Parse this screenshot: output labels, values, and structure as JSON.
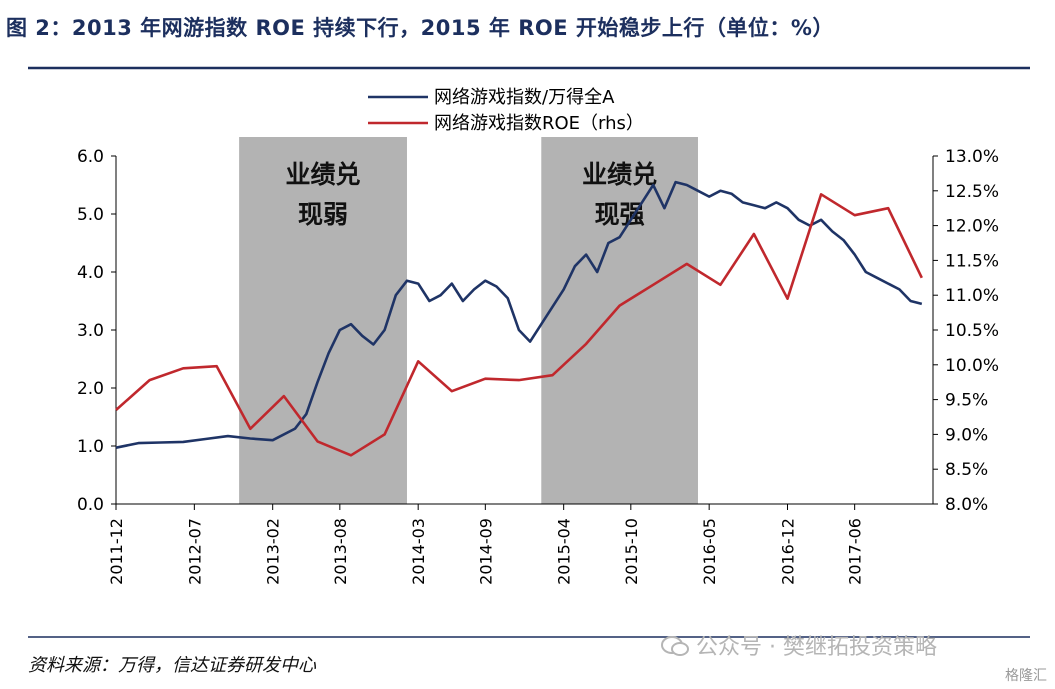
{
  "title": "图 2：2013 年网游指数 ROE 持续下行，2015 年 ROE 开始稳步上行（单位：%）",
  "source": "资料来源：万得，信达证券研发中心",
  "watermark": "公众号 · 樊继拓投资策略",
  "corner_watermark": "格隆汇",
  "colors": {
    "title": "#1c2f5e",
    "rule": "#1c2f5e",
    "series_ratio": "#1f3466",
    "series_roe": "#c0282d",
    "shade": "#b3b3b3"
  },
  "chart_data": {
    "type": "line",
    "legend_position": "top-center",
    "grid": false,
    "x_range": [
      "2011-12",
      "2018-01"
    ],
    "x_tick_labels": [
      "2011-12",
      "2012-07",
      "2013-02",
      "2013-08",
      "2014-03",
      "2014-09",
      "2015-04",
      "2015-10",
      "2016-05",
      "2016-12",
      "2017-06"
    ],
    "y_left": {
      "ylim": [
        0.0,
        6.0
      ],
      "ticks": [
        "0.0",
        "1.0",
        "2.0",
        "3.0",
        "4.0",
        "5.0",
        "6.0"
      ]
    },
    "y_right": {
      "ylim": [
        8.0,
        13.0
      ],
      "ticks": [
        "8.0%",
        "8.5%",
        "9.0%",
        "9.5%",
        "10.0%",
        "10.5%",
        "11.0%",
        "11.5%",
        "12.0%",
        "12.5%",
        "13.0%"
      ]
    },
    "shaded_periods": [
      {
        "label_line1": "业绩兑",
        "label_line2": "现弱",
        "start": "2012-11",
        "end": "2014-02"
      },
      {
        "label_line1": "业绩兑",
        "label_line2": "现强",
        "start": "2015-02",
        "end": "2016-04"
      }
    ],
    "series": [
      {
        "name": "网络游戏指数/万得全A",
        "axis": "left",
        "points": [
          [
            "2011-12",
            0.97
          ],
          [
            "2012-02",
            1.05
          ],
          [
            "2012-04",
            1.06
          ],
          [
            "2012-06",
            1.07
          ],
          [
            "2012-08",
            1.12
          ],
          [
            "2012-10",
            1.17
          ],
          [
            "2012-12",
            1.13
          ],
          [
            "2013-02",
            1.1
          ],
          [
            "2013-04",
            1.3
          ],
          [
            "2013-05",
            1.55
          ],
          [
            "2013-06",
            2.1
          ],
          [
            "2013-07",
            2.6
          ],
          [
            "2013-08",
            3.0
          ],
          [
            "2013-09",
            3.1
          ],
          [
            "2013-10",
            2.9
          ],
          [
            "2013-11",
            2.75
          ],
          [
            "2013-12",
            3.0
          ],
          [
            "2014-01",
            3.6
          ],
          [
            "2014-02",
            3.85
          ],
          [
            "2014-03",
            3.8
          ],
          [
            "2014-04",
            3.5
          ],
          [
            "2014-05",
            3.6
          ],
          [
            "2014-06",
            3.8
          ],
          [
            "2014-07",
            3.5
          ],
          [
            "2014-08",
            3.7
          ],
          [
            "2014-09",
            3.85
          ],
          [
            "2014-10",
            3.75
          ],
          [
            "2014-11",
            3.55
          ],
          [
            "2014-12",
            3.0
          ],
          [
            "2015-01",
            2.8
          ],
          [
            "2015-02",
            3.1
          ],
          [
            "2015-03",
            3.4
          ],
          [
            "2015-04",
            3.7
          ],
          [
            "2015-05",
            4.1
          ],
          [
            "2015-06",
            4.3
          ],
          [
            "2015-07",
            4.0
          ],
          [
            "2015-08",
            4.5
          ],
          [
            "2015-09",
            4.6
          ],
          [
            "2015-10",
            4.9
          ],
          [
            "2015-11",
            5.2
          ],
          [
            "2015-12",
            5.5
          ],
          [
            "2016-01",
            5.1
          ],
          [
            "2016-02",
            5.55
          ],
          [
            "2016-03",
            5.5
          ],
          [
            "2016-04",
            5.4
          ],
          [
            "2016-05",
            5.3
          ],
          [
            "2016-06",
            5.4
          ],
          [
            "2016-07",
            5.35
          ],
          [
            "2016-08",
            5.2
          ],
          [
            "2016-09",
            5.15
          ],
          [
            "2016-10",
            5.1
          ],
          [
            "2016-11",
            5.2
          ],
          [
            "2016-12",
            5.1
          ],
          [
            "2017-01",
            4.9
          ],
          [
            "2017-02",
            4.8
          ],
          [
            "2017-03",
            4.9
          ],
          [
            "2017-04",
            4.7
          ],
          [
            "2017-05",
            4.55
          ],
          [
            "2017-06",
            4.3
          ],
          [
            "2017-07",
            4.0
          ],
          [
            "2017-08",
            3.9
          ],
          [
            "2017-09",
            3.8
          ],
          [
            "2017-10",
            3.7
          ],
          [
            "2017-11",
            3.5
          ],
          [
            "2017-12",
            3.45
          ]
        ]
      },
      {
        "name": "网络游戏指数ROE（rhs）",
        "axis": "right",
        "points": [
          [
            "2011-12",
            9.35
          ],
          [
            "2012-03",
            9.78
          ],
          [
            "2012-06",
            9.95
          ],
          [
            "2012-09",
            9.98
          ],
          [
            "2012-12",
            9.08
          ],
          [
            "2013-03",
            9.55
          ],
          [
            "2013-06",
            8.9
          ],
          [
            "2013-09",
            8.7
          ],
          [
            "2013-12",
            9.0
          ],
          [
            "2014-03",
            10.05
          ],
          [
            "2014-06",
            9.62
          ],
          [
            "2014-09",
            9.8
          ],
          [
            "2014-12",
            9.78
          ],
          [
            "2015-03",
            9.85
          ],
          [
            "2015-06",
            10.3
          ],
          [
            "2015-09",
            10.85
          ],
          [
            "2015-12",
            11.15
          ],
          [
            "2016-03",
            11.45
          ],
          [
            "2016-06",
            11.15
          ],
          [
            "2016-09",
            11.88
          ],
          [
            "2016-12",
            10.95
          ],
          [
            "2017-03",
            12.45
          ],
          [
            "2017-06",
            12.15
          ],
          [
            "2017-09",
            12.25
          ],
          [
            "2017-12",
            11.25
          ]
        ]
      }
    ]
  }
}
